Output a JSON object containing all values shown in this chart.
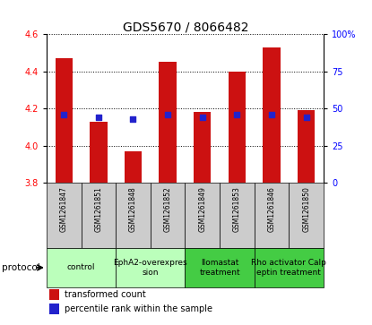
{
  "title": "GDS5670 / 8066482",
  "samples": [
    "GSM1261847",
    "GSM1261851",
    "GSM1261848",
    "GSM1261852",
    "GSM1261849",
    "GSM1261853",
    "GSM1261846",
    "GSM1261850"
  ],
  "transformed_count": [
    4.47,
    4.13,
    3.97,
    4.45,
    4.18,
    4.4,
    4.53,
    4.19
  ],
  "percentile_rank": [
    46,
    44,
    43,
    46,
    44,
    46,
    46,
    44
  ],
  "baseline": 3.8,
  "ylim_left": [
    3.8,
    4.6
  ],
  "ylim_right": [
    0,
    100
  ],
  "yticks_left": [
    3.8,
    4.0,
    4.2,
    4.4,
    4.6
  ],
  "yticks_right": [
    0,
    25,
    50,
    75,
    100
  ],
  "protocol_groups": [
    {
      "start": 0,
      "end": 1,
      "label": "control",
      "color": "#bbffbb"
    },
    {
      "start": 2,
      "end": 3,
      "label": "EphA2-overexpres\nsion",
      "color": "#bbffbb"
    },
    {
      "start": 4,
      "end": 5,
      "label": "Ilomastat\ntreatment",
      "color": "#44cc44"
    },
    {
      "start": 6,
      "end": 7,
      "label": "Rho activator Calp\neptin treatment",
      "color": "#44cc44"
    }
  ],
  "bar_color": "#cc1111",
  "dot_color": "#2222cc",
  "bar_width": 0.5,
  "dot_size": 25,
  "sample_bg_color": "#cccccc",
  "title_fontsize": 10,
  "tick_fontsize": 7,
  "sample_fontsize": 5.5,
  "protocol_fontsize": 6.5,
  "legend_fontsize": 7
}
